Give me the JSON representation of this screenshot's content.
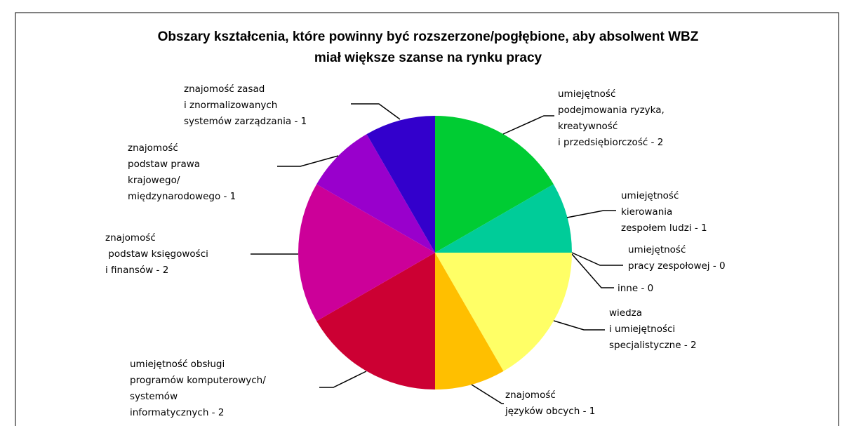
{
  "chart_data": {
    "type": "pie",
    "title": [
      "Obszary kształcenia, które powinny być rozszerzone/pogłębione, aby absolwent WBZ",
      "miał większe szanse na rynku pracy"
    ],
    "categories": [
      [
        "umiejętność",
        "podejmowania ryzyka,",
        "kreatywność",
        "i przedsiębiorczość - 2"
      ],
      [
        "umiejętność",
        "kierowania",
        "zespołem ludzi - 1"
      ],
      [
        "umiejętność",
        "pracy zespołowej - 0"
      ],
      [
        "inne - 0"
      ],
      [
        "wiedza",
        "i umiejętności",
        "specjalistyczne - 2"
      ],
      [
        "znajomość",
        "języków obcych - 1"
      ],
      [
        "umiejętność obsługi",
        "programów komputerowych/",
        "systemów",
        "informatycznych - 2"
      ],
      [
        "znajomość",
        " podstaw księgowości",
        "i finansów - 2"
      ],
      [
        "znajomość",
        "podstaw prawa",
        "krajowego/",
        "międzynarodowego - 1"
      ],
      [
        "znajomość zasad",
        "i znormalizowanych",
        "systemów zarządzania - 1"
      ]
    ],
    "values": [
      2,
      1,
      0,
      0,
      2,
      1,
      2,
      2,
      1,
      1
    ],
    "colors": [
      "#00cc33",
      "#00cc99",
      "#33ccff",
      "#999999",
      "#ffff66",
      "#ffbf00",
      "#cc0033",
      "#cc0099",
      "#9900cc",
      "#3300cc"
    ]
  }
}
